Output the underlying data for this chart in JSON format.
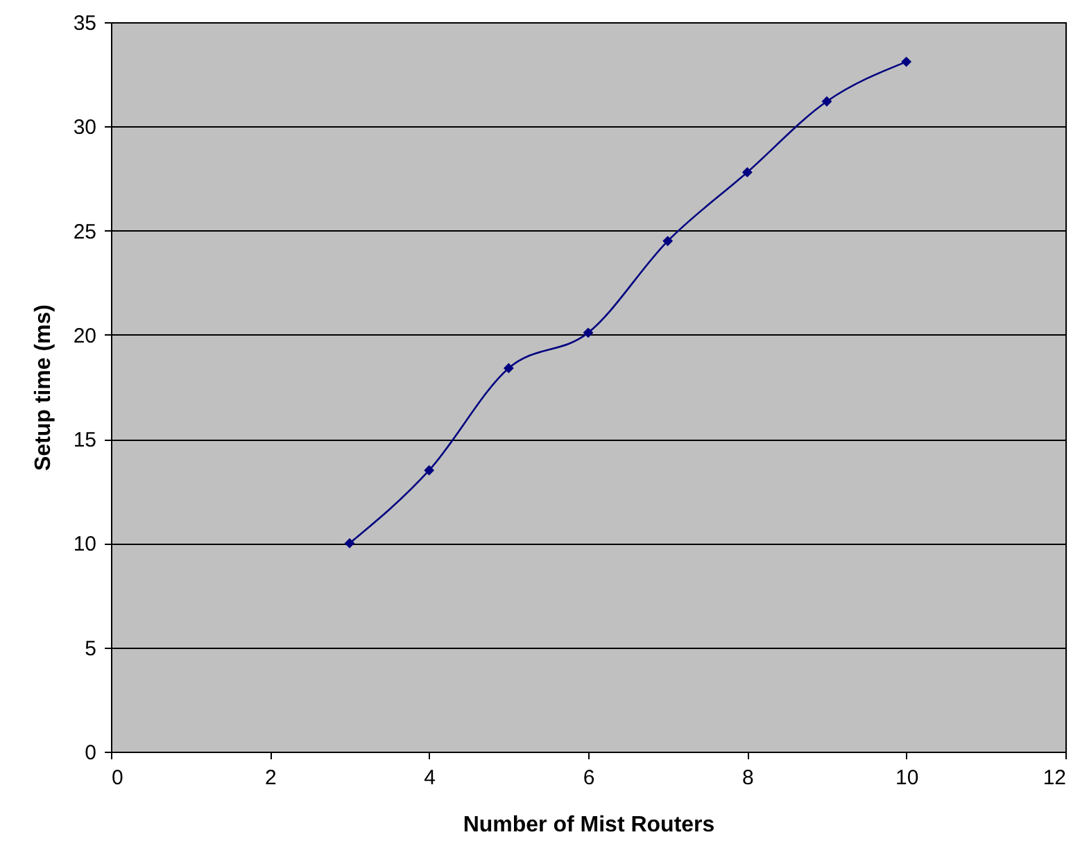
{
  "chart_data": {
    "type": "line",
    "xlabel": "Number of Mist Routers",
    "ylabel": "Setup time (ms)",
    "x": [
      3,
      4,
      5,
      6,
      7,
      8,
      9,
      10
    ],
    "series": [
      {
        "color": "#000080",
        "values": [
          10,
          13.5,
          18.4,
          20.1,
          24.5,
          27.8,
          31.2,
          33.1
        ]
      }
    ],
    "xlim": [
      0,
      12
    ],
    "xticks": [
      0,
      2,
      4,
      6,
      8,
      10,
      12
    ],
    "ylim": [
      0,
      35
    ],
    "yticks": [
      0,
      5,
      10,
      15,
      20,
      25,
      30,
      35
    ],
    "grid": "y",
    "marker": "diamond",
    "line_style": "solid"
  }
}
